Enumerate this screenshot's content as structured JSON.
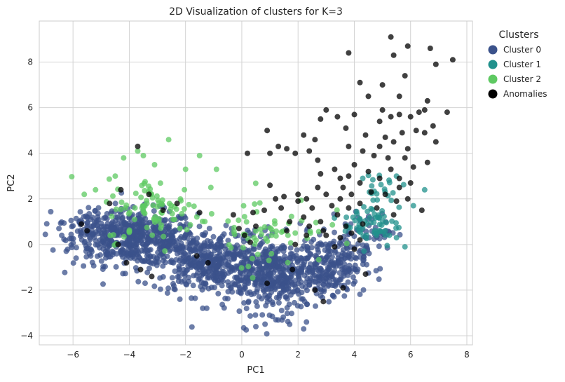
{
  "chart_data": {
    "type": "scatter",
    "title": "2D Visualization of clusters for K=3",
    "xlabel": "PC1",
    "ylabel": "PC2",
    "xlim": [
      -7.2,
      8.2
    ],
    "ylim": [
      -4.4,
      9.8
    ],
    "xticks": [
      -6,
      -4,
      -2,
      0,
      2,
      4,
      6,
      8
    ],
    "yticks": [
      -4,
      -2,
      0,
      2,
      4,
      6,
      8
    ],
    "xtick_labels": [
      "−6",
      "−4",
      "−2",
      "0",
      "2",
      "4",
      "6",
      "8"
    ],
    "ytick_labels": [
      "−4",
      "−2",
      "0",
      "2",
      "4",
      "6",
      "8"
    ],
    "grid": true,
    "background": "#ffffff",
    "grid_color": "#d3d3d3",
    "legend": {
      "title": "Clusters",
      "placement": "outside-top-right",
      "entries": [
        {
          "label": "Cluster 0",
          "color": "#3b528b"
        },
        {
          "label": "Cluster 1",
          "color": "#21918c"
        },
        {
          "label": "Cluster 2",
          "color": "#5ec962"
        },
        {
          "label": "Anomalies",
          "color": "#000000"
        }
      ]
    },
    "series": [
      {
        "name": "Cluster 0",
        "color": "#3b528b",
        "clusters": [
          {
            "cx": -3.8,
            "cy": 0.3,
            "sx": 1.1,
            "sy": 0.6,
            "n": 520
          },
          {
            "cx": -1.2,
            "cy": -0.8,
            "sx": 1.0,
            "sy": 0.7,
            "n": 420
          },
          {
            "cx": 1.3,
            "cy": -1.4,
            "sx": 0.9,
            "sy": 0.8,
            "n": 420
          },
          {
            "cx": 3.2,
            "cy": -0.9,
            "sx": 0.6,
            "sy": 0.6,
            "n": 200
          },
          {
            "cx": -5.5,
            "cy": 0.8,
            "sx": 0.5,
            "sy": 0.4,
            "n": 50
          },
          {
            "cx": 4.5,
            "cy": 0.6,
            "sx": 0.5,
            "sy": 0.4,
            "n": 50
          }
        ],
        "points": [
          {
            "x": -6.5,
            "y": 0.7
          },
          {
            "x": -6.4,
            "y": 0.4
          },
          {
            "x": -2.2,
            "y": -2.4
          },
          {
            "x": 2.2,
            "y": -3.7
          },
          {
            "x": 1.7,
            "y": -3.5
          },
          {
            "x": 0.5,
            "y": -3.6
          }
        ]
      },
      {
        "name": "Cluster 1",
        "color": "#21918c",
        "clusters": [
          {
            "cx": 4.6,
            "cy": 0.9,
            "sx": 0.5,
            "sy": 0.5,
            "n": 60
          },
          {
            "cx": 4.9,
            "cy": 2.5,
            "sx": 0.5,
            "sy": 0.5,
            "n": 20
          }
        ],
        "points": [
          {
            "x": 6.5,
            "y": 2.4
          },
          {
            "x": 6.1,
            "y": 1.7
          },
          {
            "x": 5.8,
            "y": -0.1
          },
          {
            "x": 5.5,
            "y": 0.3
          },
          {
            "x": 4.3,
            "y": 2.9
          },
          {
            "x": 5.5,
            "y": 3.0
          }
        ]
      },
      {
        "name": "Cluster 2",
        "color": "#5ec962",
        "clusters": [
          {
            "cx": -3.0,
            "cy": 1.5,
            "sx": 0.9,
            "sy": 0.7,
            "n": 90
          },
          {
            "cx": 1.0,
            "cy": 0.7,
            "sx": 1.0,
            "sy": 0.8,
            "n": 60
          }
        ],
        "points": [
          {
            "x": -5.6,
            "y": 2.2
          },
          {
            "x": -5.2,
            "y": 2.4
          },
          {
            "x": -4.5,
            "y": 3.0
          },
          {
            "x": -4.2,
            "y": 3.8
          },
          {
            "x": -3.7,
            "y": 4.1
          },
          {
            "x": -3.5,
            "y": 3.9
          },
          {
            "x": -2.6,
            "y": 4.6
          },
          {
            "x": -3.1,
            "y": 3.5
          },
          {
            "x": -2.0,
            "y": 3.3
          },
          {
            "x": -1.5,
            "y": 3.9
          },
          {
            "x": -1.1,
            "y": 2.5
          },
          {
            "x": -0.9,
            "y": 3.3
          }
        ]
      },
      {
        "name": "Anomalies",
        "color": "#000000",
        "points": [
          {
            "x": 5.3,
            "y": 9.1
          },
          {
            "x": 5.9,
            "y": 8.7
          },
          {
            "x": 6.7,
            "y": 8.6
          },
          {
            "x": 7.5,
            "y": 8.1
          },
          {
            "x": 6.9,
            "y": 7.9
          },
          {
            "x": 3.8,
            "y": 8.4
          },
          {
            "x": 5.4,
            "y": 8.3
          },
          {
            "x": 5.8,
            "y": 7.4
          },
          {
            "x": 4.2,
            "y": 7.1
          },
          {
            "x": 5.0,
            "y": 7.0
          },
          {
            "x": 4.5,
            "y": 6.5
          },
          {
            "x": 5.6,
            "y": 6.5
          },
          {
            "x": 6.6,
            "y": 6.3
          },
          {
            "x": 7.3,
            "y": 5.8
          },
          {
            "x": 6.5,
            "y": 5.9
          },
          {
            "x": 3.0,
            "y": 5.9
          },
          {
            "x": 3.4,
            "y": 5.6
          },
          {
            "x": 2.8,
            "y": 5.5
          },
          {
            "x": 4.0,
            "y": 5.7
          },
          {
            "x": 5.0,
            "y": 5.9
          },
          {
            "x": 5.3,
            "y": 5.6
          },
          {
            "x": 5.6,
            "y": 5.7
          },
          {
            "x": 6.0,
            "y": 5.6
          },
          {
            "x": 6.3,
            "y": 5.8
          },
          {
            "x": 6.8,
            "y": 5.2
          },
          {
            "x": 4.9,
            "y": 5.4
          },
          {
            "x": 3.7,
            "y": 5.1
          },
          {
            "x": 4.4,
            "y": 4.8
          },
          {
            "x": 5.1,
            "y": 4.7
          },
          {
            "x": 5.7,
            "y": 4.9
          },
          {
            "x": 6.2,
            "y": 5.0
          },
          {
            "x": 6.5,
            "y": 4.9
          },
          {
            "x": 6.9,
            "y": 4.5
          },
          {
            "x": 5.9,
            "y": 4.2
          },
          {
            "x": 5.4,
            "y": 4.5
          },
          {
            "x": 4.9,
            "y": 4.3
          },
          {
            "x": 4.3,
            "y": 4.1
          },
          {
            "x": 3.8,
            "y": 4.3
          },
          {
            "x": 1.6,
            "y": 4.2
          },
          {
            "x": 2.4,
            "y": 4.1
          },
          {
            "x": 1.9,
            "y": 4.0
          },
          {
            "x": 1.0,
            "y": 4.0
          },
          {
            "x": 0.2,
            "y": 4.0
          },
          {
            "x": 1.3,
            "y": 4.3
          },
          {
            "x": 0.9,
            "y": 5.0
          },
          {
            "x": 2.2,
            "y": 4.8
          },
          {
            "x": 2.6,
            "y": 4.6
          },
          {
            "x": 4.7,
            "y": 3.9
          },
          {
            "x": 5.2,
            "y": 3.8
          },
          {
            "x": 5.8,
            "y": 3.8
          },
          {
            "x": 6.1,
            "y": 3.4
          },
          {
            "x": 6.6,
            "y": 3.6
          },
          {
            "x": 4.0,
            "y": 3.5
          },
          {
            "x": 4.5,
            "y": 3.2
          },
          {
            "x": 3.8,
            "y": 3.0
          },
          {
            "x": 3.5,
            "y": 2.9
          },
          {
            "x": 3.3,
            "y": 3.3
          },
          {
            "x": 2.7,
            "y": 3.7
          },
          {
            "x": 2.8,
            "y": 3.1
          },
          {
            "x": 4.9,
            "y": 2.9
          },
          {
            "x": 5.6,
            "y": 2.9
          },
          {
            "x": 6.0,
            "y": 2.7
          },
          {
            "x": 5.3,
            "y": 3.3
          },
          {
            "x": 4.2,
            "y": 2.7
          },
          {
            "x": 3.6,
            "y": 2.5
          },
          {
            "x": 3.9,
            "y": 2.2
          },
          {
            "x": 3.5,
            "y": 2.0
          },
          {
            "x": 2.7,
            "y": 2.5
          },
          {
            "x": 2.0,
            "y": 2.2
          },
          {
            "x": 1.5,
            "y": 2.1
          },
          {
            "x": 1.0,
            "y": 2.6
          },
          {
            "x": 1.2,
            "y": 2.0
          },
          {
            "x": 2.3,
            "y": 2.0
          },
          {
            "x": 3.0,
            "y": 2.2
          },
          {
            "x": 4.6,
            "y": 2.3
          },
          {
            "x": 5.1,
            "y": 2.2
          },
          {
            "x": 5.6,
            "y": 2.5
          },
          {
            "x": 5.9,
            "y": 2.0
          },
          {
            "x": 5.5,
            "y": 1.9
          },
          {
            "x": 4.8,
            "y": 1.6
          },
          {
            "x": 4.2,
            "y": 1.8
          },
          {
            "x": 3.8,
            "y": 1.6
          },
          {
            "x": 3.2,
            "y": 1.7
          },
          {
            "x": 2.5,
            "y": 1.6
          },
          {
            "x": 2.0,
            "y": 1.9
          },
          {
            "x": 1.4,
            "y": 1.6
          },
          {
            "x": 0.8,
            "y": 1.5
          },
          {
            "x": 2.2,
            "y": 1.2
          },
          {
            "x": 2.8,
            "y": 1.0
          },
          {
            "x": 3.4,
            "y": 1.3
          },
          {
            "x": 3.7,
            "y": 0.8
          },
          {
            "x": 2.4,
            "y": 0.8
          },
          {
            "x": 1.7,
            "y": 1.0
          },
          {
            "x": 1.6,
            "y": 0.6
          },
          {
            "x": 2.3,
            "y": 0.4
          },
          {
            "x": 2.9,
            "y": 0.6
          },
          {
            "x": 3.5,
            "y": 0.3
          },
          {
            "x": 3.9,
            "y": 0.5
          },
          {
            "x": 4.2,
            "y": 0.2
          },
          {
            "x": 4.0,
            "y": -0.2
          },
          {
            "x": 3.3,
            "y": -0.1
          },
          {
            "x": 1.9,
            "y": 0.0
          },
          {
            "x": 5.4,
            "y": 1.3
          },
          {
            "x": 6.4,
            "y": 1.5
          },
          {
            "x": 4.3,
            "y": 0.9
          },
          {
            "x": 3.0,
            "y": 0.4
          },
          {
            "x": 0.4,
            "y": 1.4
          },
          {
            "x": -0.3,
            "y": 1.3
          },
          {
            "x": 0.5,
            "y": 0.8
          },
          {
            "x": -0.1,
            "y": 0.7
          },
          {
            "x": 0.1,
            "y": 0.4
          },
          {
            "x": 0.3,
            "y": 0.1
          },
          {
            "x": -1.5,
            "y": 1.4
          },
          {
            "x": -2.3,
            "y": 1.8
          },
          {
            "x": -2.8,
            "y": 1.5
          },
          {
            "x": -3.7,
            "y": 4.3
          },
          {
            "x": -5.7,
            "y": 0.9
          },
          {
            "x": -5.5,
            "y": 0.6
          },
          {
            "x": -4.4,
            "y": 0.0
          },
          {
            "x": -4.1,
            "y": -0.8
          },
          {
            "x": -3.6,
            "y": -1.1
          },
          {
            "x": -3.2,
            "y": -1.4
          },
          {
            "x": -1.6,
            "y": -0.5
          },
          {
            "x": -1.2,
            "y": -0.8
          },
          {
            "x": 0.9,
            "y": -1.7
          },
          {
            "x": 1.8,
            "y": -1.1
          },
          {
            "x": 2.6,
            "y": -2.0
          },
          {
            "x": 2.9,
            "y": -2.5
          },
          {
            "x": 3.6,
            "y": -1.9
          },
          {
            "x": 4.4,
            "y": -1.3
          },
          {
            "x": -4.7,
            "y": 1.8
          },
          {
            "x": -4.3,
            "y": 2.4
          },
          {
            "x": -3.3,
            "y": 2.2
          }
        ]
      }
    ]
  }
}
